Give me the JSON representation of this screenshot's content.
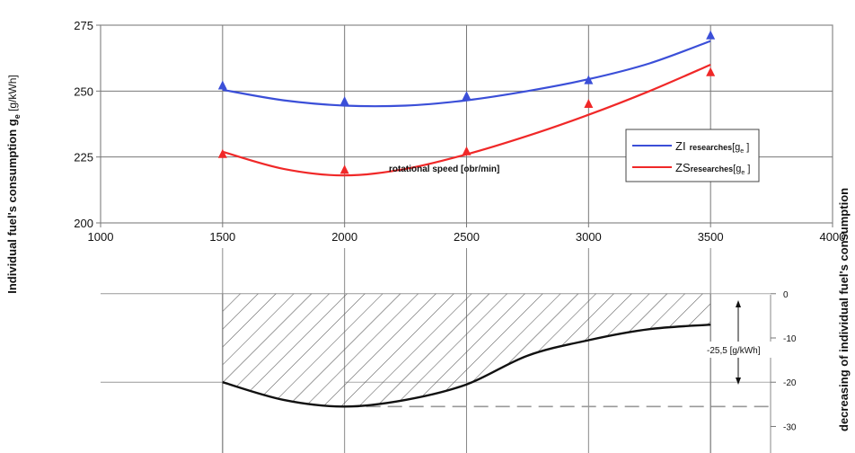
{
  "chart_data": [
    {
      "type": "line",
      "title": "",
      "xlabel": "rotational speed [obr/min]",
      "ylabel": "Individual fuel's consumption g",
      "ylabel_sub": "e",
      "ylabel_unit": " [g/kWh]",
      "xlim": [
        1000,
        4000
      ],
      "ylim": [
        200,
        275
      ],
      "x_ticks": [
        1000,
        1500,
        2000,
        2500,
        3000,
        3500,
        4000
      ],
      "y_ticks": [
        200,
        225,
        250,
        275
      ],
      "grid": true,
      "legend_position": "right",
      "series": [
        {
          "name": "ZI researches[g",
          "name_main": "ZI",
          "name_small": "researches",
          "name_sub": "e",
          "color": "#3b4fd8",
          "markers": {
            "x": [
              1500,
              2000,
              2500,
              3000,
              3500
            ],
            "y": [
              252,
              246,
              248,
              254,
              271
            ]
          },
          "curve": {
            "x": [
              1500,
              1750,
              2000,
              2250,
              2500,
              2750,
              3000,
              3250,
              3500
            ],
            "y": [
              250.5,
              246.5,
              244.5,
              244.5,
              246.5,
              250,
              254.5,
              260.5,
              269
            ]
          }
        },
        {
          "name": "ZS researches[g",
          "name_main": "ZS",
          "name_small": "researches",
          "name_sub": "e",
          "color": "#f02828",
          "markers": {
            "x": [
              1500,
              2000,
              2500,
              3000,
              3500
            ],
            "y": [
              226,
              220,
              227,
              245,
              257
            ]
          },
          "curve": {
            "x": [
              1500,
              1750,
              2000,
              2250,
              2500,
              2750,
              3000,
              3250,
              3500
            ],
            "y": [
              227,
              220.5,
              218,
              220.5,
              226,
              233,
              241,
              250,
              260
            ]
          }
        }
      ]
    },
    {
      "type": "area",
      "ylabel": "decreasing of individual fuel's consumption",
      "ylim": [
        -36,
        3
      ],
      "y_ticks": [
        0,
        -10,
        -20,
        -30
      ],
      "annotation": "-25,5 [g/kWh]",
      "reference_lines": [
        0,
        -20,
        -25.5
      ],
      "series": [
        {
          "name": "",
          "color": "#111111",
          "x": [
            1500,
            1750,
            2000,
            2250,
            2500,
            2750,
            3000,
            3250,
            3500
          ],
          "y": [
            -20,
            -24,
            -25.5,
            -24,
            -20.5,
            -14,
            -10.5,
            -8,
            -7
          ]
        }
      ]
    }
  ]
}
